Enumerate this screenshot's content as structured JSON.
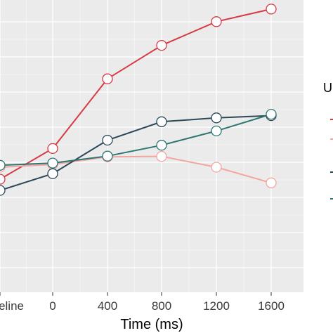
{
  "chart_data": {
    "type": "line",
    "title": "",
    "xlabel": "Time (ms)",
    "ylabel": "",
    "categories": [
      "Baseline",
      "0",
      "400",
      "800",
      "1200",
      "1600"
    ],
    "x_tick_labels": [
      "eline",
      "0",
      "400",
      "800",
      "1200",
      "1600"
    ],
    "ylim": [
      0,
      1
    ],
    "grid": true,
    "background": "#EBEBEB",
    "legend": {
      "title": "U",
      "position": "right",
      "series_colors": [
        "#D63A45",
        "#F3A5A0",
        "#2C4858",
        "#2E7673"
      ]
    },
    "series": [
      {
        "color": "#D63A45",
        "values": [
          0.37,
          0.48,
          0.73,
          0.85,
          0.935,
          0.98
        ]
      },
      {
        "color": "#F3A5A0",
        "values": [
          0.413,
          0.423,
          0.45,
          0.452,
          0.413,
          0.357
        ]
      },
      {
        "color": "#2C4858",
        "values": [
          0.33,
          0.39,
          0.51,
          0.576,
          0.59,
          0.598
        ]
      },
      {
        "color": "#2E7673",
        "values": [
          0.42,
          0.428,
          0.453,
          0.492,
          0.543,
          0.603
        ]
      }
    ]
  }
}
